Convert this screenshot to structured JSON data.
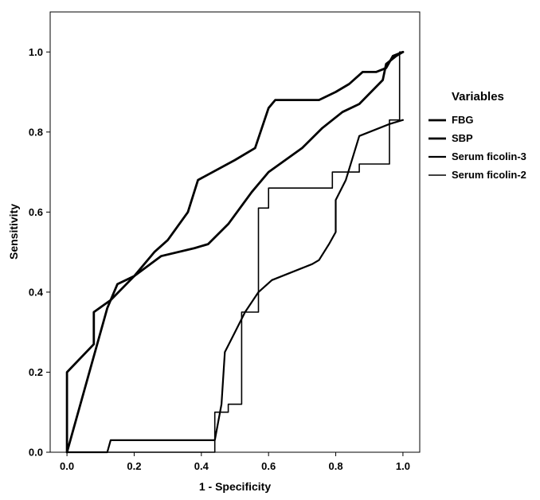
{
  "chart_data": {
    "type": "line",
    "title": "",
    "xlabel": "1 - Specificity",
    "ylabel": "Sensitivity",
    "xlim": [
      -0.05,
      1.05
    ],
    "ylim": [
      0.0,
      1.1
    ],
    "xticks": [
      "0.0",
      "0.2",
      "0.4",
      "0.6",
      "0.8",
      "1.0"
    ],
    "yticks": [
      "0.0",
      "0.2",
      "0.4",
      "0.6",
      "0.8",
      "1.0"
    ],
    "grid": false,
    "legend": {
      "title": "Variables",
      "placement": "right"
    },
    "series": [
      {
        "name": "FBG",
        "color": "#000000",
        "points": [
          [
            0.0,
            0.0
          ],
          [
            0.06,
            0.18
          ],
          [
            0.12,
            0.36
          ],
          [
            0.15,
            0.42
          ],
          [
            0.2,
            0.44
          ],
          [
            0.26,
            0.5
          ],
          [
            0.3,
            0.53
          ],
          [
            0.36,
            0.6
          ],
          [
            0.39,
            0.68
          ],
          [
            0.5,
            0.73
          ],
          [
            0.56,
            0.76
          ],
          [
            0.6,
            0.86
          ],
          [
            0.62,
            0.88
          ],
          [
            0.75,
            0.88
          ],
          [
            0.8,
            0.9
          ],
          [
            0.84,
            0.92
          ],
          [
            0.88,
            0.95
          ],
          [
            0.92,
            0.95
          ],
          [
            0.95,
            0.96
          ],
          [
            0.97,
            0.99
          ],
          [
            1.0,
            1.0
          ]
        ]
      },
      {
        "name": "SBP",
        "color": "#000000",
        "points": [
          [
            0.0,
            0.0
          ],
          [
            0.0,
            0.2
          ],
          [
            0.08,
            0.27
          ],
          [
            0.08,
            0.35
          ],
          [
            0.13,
            0.38
          ],
          [
            0.2,
            0.44
          ],
          [
            0.28,
            0.49
          ],
          [
            0.38,
            0.51
          ],
          [
            0.42,
            0.52
          ],
          [
            0.48,
            0.57
          ],
          [
            0.55,
            0.65
          ],
          [
            0.6,
            0.7
          ],
          [
            0.7,
            0.76
          ],
          [
            0.76,
            0.81
          ],
          [
            0.82,
            0.85
          ],
          [
            0.87,
            0.87
          ],
          [
            0.94,
            0.93
          ],
          [
            0.95,
            0.97
          ],
          [
            0.98,
            0.99
          ],
          [
            1.0,
            1.0
          ]
        ]
      },
      {
        "name": "Serum ficolin-3",
        "color": "#000000",
        "points": [
          [
            0.0,
            0.0
          ],
          [
            0.12,
            0.0
          ],
          [
            0.13,
            0.03
          ],
          [
            0.44,
            0.03
          ],
          [
            0.46,
            0.12
          ],
          [
            0.47,
            0.25
          ],
          [
            0.5,
            0.3
          ],
          [
            0.53,
            0.35
          ],
          [
            0.57,
            0.4
          ],
          [
            0.61,
            0.43
          ],
          [
            0.7,
            0.46
          ],
          [
            0.73,
            0.47
          ],
          [
            0.75,
            0.48
          ],
          [
            0.78,
            0.52
          ],
          [
            0.8,
            0.55
          ],
          [
            0.8,
            0.63
          ],
          [
            0.83,
            0.68
          ],
          [
            0.87,
            0.79
          ],
          [
            0.96,
            0.82
          ],
          [
            1.0,
            0.83
          ]
        ]
      },
      {
        "name": "Serum ficolin-2",
        "color": "#000000",
        "points": [
          [
            0.0,
            0.0
          ],
          [
            0.44,
            0.0
          ],
          [
            0.44,
            0.1
          ],
          [
            0.48,
            0.1
          ],
          [
            0.48,
            0.12
          ],
          [
            0.52,
            0.12
          ],
          [
            0.52,
            0.35
          ],
          [
            0.57,
            0.35
          ],
          [
            0.57,
            0.61
          ],
          [
            0.6,
            0.61
          ],
          [
            0.6,
            0.66
          ],
          [
            0.79,
            0.66
          ],
          [
            0.79,
            0.7
          ],
          [
            0.87,
            0.7
          ],
          [
            0.87,
            0.72
          ],
          [
            0.96,
            0.72
          ],
          [
            0.96,
            0.83
          ],
          [
            0.99,
            0.83
          ],
          [
            0.99,
            1.0
          ],
          [
            1.0,
            1.0
          ]
        ]
      }
    ]
  }
}
